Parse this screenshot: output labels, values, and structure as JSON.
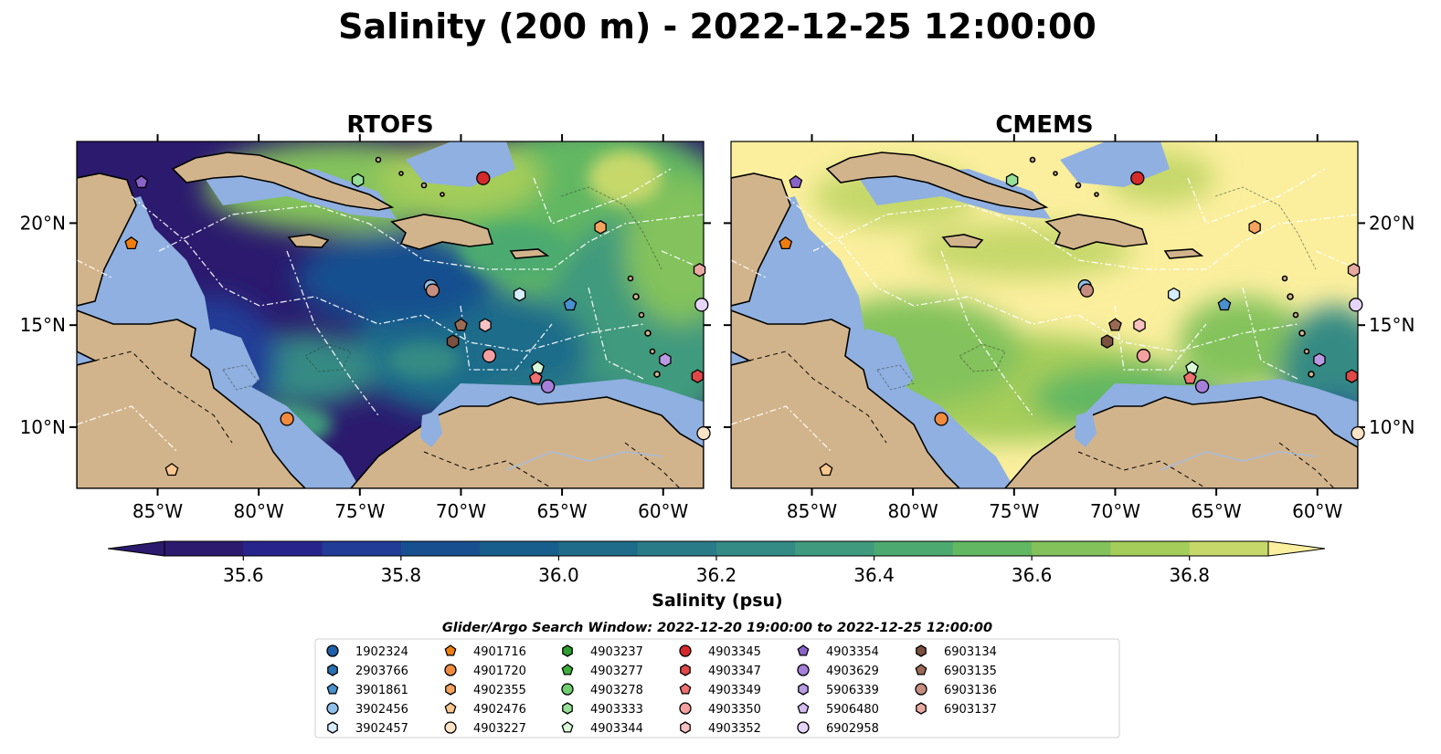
{
  "figure": {
    "title": "Salinity (200 m) - 2022-12-25 12:00:00"
  },
  "chart_data": {
    "type": "heatmap",
    "title": "Salinity (200 m) - 2022-12-25 12:00:00",
    "panels": [
      {
        "id": "rtofs",
        "title": "RTOFS",
        "field_mean_psu": 35.9
      },
      {
        "id": "cmems",
        "title": "CMEMS",
        "field_mean_psu": 36.75
      }
    ],
    "lon_range": [
      -89,
      -58
    ],
    "lat_range": [
      7,
      24
    ],
    "x_ticks": [
      {
        "value": -85,
        "label": "85°W"
      },
      {
        "value": -80,
        "label": "80°W"
      },
      {
        "value": -75,
        "label": "75°W"
      },
      {
        "value": -70,
        "label": "70°W"
      },
      {
        "value": -65,
        "label": "65°W"
      },
      {
        "value": -60,
        "label": "60°W"
      }
    ],
    "y_ticks": [
      {
        "value": 20,
        "label": "20°N"
      },
      {
        "value": 15,
        "label": "15°N"
      },
      {
        "value": 10,
        "label": "10°N"
      }
    ],
    "colorbar": {
      "label": "Salinity (psu)",
      "range": [
        35.5,
        36.9
      ],
      "extend": "both",
      "tick_labels": [
        "35.6",
        "35.8",
        "36.0",
        "36.2",
        "36.4",
        "36.6",
        "36.8"
      ],
      "tick_values": [
        35.6,
        35.8,
        36.0,
        36.2,
        36.4,
        36.6,
        36.8
      ],
      "colors": [
        "#2b1a6e",
        "#27258c",
        "#203c97",
        "#18508f",
        "#185e8c",
        "#1f6c8a",
        "#297b87",
        "#348a84",
        "#409a7d",
        "#4caa70",
        "#62b762",
        "#83c25b",
        "#a5cd5a",
        "#c6d86a",
        "#fbef9e"
      ]
    },
    "legend": {
      "title": "Glider/Argo Search Window: 2022-12-20 19:00:00 to 2022-12-25 12:00:00",
      "location": "bottom-center",
      "columns": 7,
      "entries": [
        {
          "id": "1902324",
          "marker": "circle",
          "color": "#1f5fa8",
          "lon": null,
          "lat": null
        },
        {
          "id": "2903766",
          "marker": "hexagon",
          "color": "#2a70b3",
          "lon": null,
          "lat": null
        },
        {
          "id": "3901861",
          "marker": "pentagon",
          "color": "#4a90cf",
          "lon": -64.6,
          "lat": 16.0
        },
        {
          "id": "3902456",
          "marker": "circle",
          "color": "#8fc0ea",
          "lon": -71.5,
          "lat": 16.9
        },
        {
          "id": "3902457",
          "marker": "hexagon",
          "color": "#d6ecff",
          "lon": -67.1,
          "lat": 16.5
        },
        {
          "id": "4901716",
          "marker": "pentagon",
          "color": "#f07d0f",
          "lon": -86.3,
          "lat": 19.0
        },
        {
          "id": "4901720",
          "marker": "circle",
          "color": "#f08a3c",
          "lon": -78.6,
          "lat": 10.4
        },
        {
          "id": "4902355",
          "marker": "hexagon",
          "color": "#f4a45e",
          "lon": -63.1,
          "lat": 19.8
        },
        {
          "id": "4902476",
          "marker": "pentagon",
          "color": "#fbc791",
          "lon": -84.3,
          "lat": 7.9
        },
        {
          "id": "4903227",
          "marker": "circle",
          "color": "#fde3c6",
          "lon": -58.0,
          "lat": 9.7
        },
        {
          "id": "4903237",
          "marker": "hexagon",
          "color": "#2e9e2e",
          "lon": null,
          "lat": null
        },
        {
          "id": "4903277",
          "marker": "pentagon",
          "color": "#3cae3c",
          "lon": null,
          "lat": null
        },
        {
          "id": "4903278",
          "marker": "circle",
          "color": "#6fcf6f",
          "lon": null,
          "lat": null
        },
        {
          "id": "4903333",
          "marker": "hexagon",
          "color": "#97e097",
          "lon": -75.1,
          "lat": 22.1
        },
        {
          "id": "4903344",
          "marker": "pentagon",
          "color": "#d8f8d8",
          "lon": -66.2,
          "lat": 12.9
        },
        {
          "id": "4903345",
          "marker": "circle",
          "color": "#d42a2a",
          "lon": -68.9,
          "lat": 22.2
        },
        {
          "id": "4903347",
          "marker": "hexagon",
          "color": "#e04848",
          "lon": -58.3,
          "lat": 12.5
        },
        {
          "id": "4903349",
          "marker": "pentagon",
          "color": "#ee7070",
          "lon": -66.3,
          "lat": 12.4
        },
        {
          "id": "4903350",
          "marker": "circle",
          "color": "#f4a0a0",
          "lon": -68.6,
          "lat": 13.5
        },
        {
          "id": "4903352",
          "marker": "hexagon",
          "color": "#f8c2c2",
          "lon": -68.8,
          "lat": 15.0
        },
        {
          "id": "4903354",
          "marker": "pentagon",
          "color": "#8a63c8",
          "lon": -85.8,
          "lat": 22.0
        },
        {
          "id": "4903629",
          "marker": "circle",
          "color": "#a57fd8",
          "lon": -65.7,
          "lat": 12.0
        },
        {
          "id": "5906339",
          "marker": "hexagon",
          "color": "#bb9ae4",
          "lon": -59.9,
          "lat": 13.3
        },
        {
          "id": "5906480",
          "marker": "pentagon",
          "color": "#d3bdf0",
          "lon": null,
          "lat": null
        },
        {
          "id": "6902958",
          "marker": "circle",
          "color": "#e6d4fa",
          "lon": -58.1,
          "lat": 16.0
        },
        {
          "id": "6903134",
          "marker": "hexagon",
          "color": "#7a5040",
          "lon": -70.4,
          "lat": 14.2
        },
        {
          "id": "6903135",
          "marker": "pentagon",
          "color": "#9a6a55",
          "lon": -70.0,
          "lat": 15.0
        },
        {
          "id": "6903136",
          "marker": "circle",
          "color": "#c68e80",
          "lon": -71.4,
          "lat": 16.7
        },
        {
          "id": "6903137",
          "marker": "hexagon",
          "color": "#e8aaa0",
          "lon": -58.2,
          "lat": 17.7
        }
      ]
    }
  }
}
